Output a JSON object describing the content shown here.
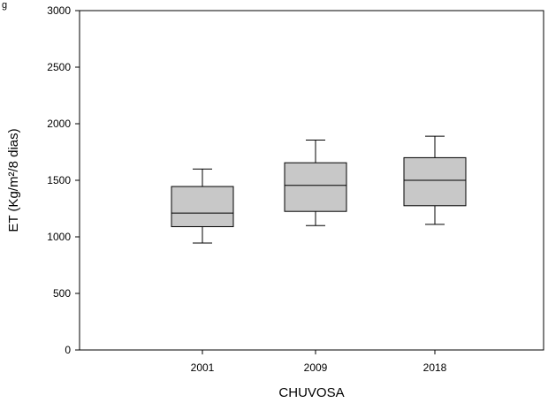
{
  "chart_data": {
    "type": "box",
    "title": "",
    "corner_mark": "g",
    "xlabel": "CHUVOSA",
    "ylabel": "ET (Kg/m²/8 dias)",
    "ylim": [
      0,
      3000
    ],
    "yticks": [
      0,
      500,
      1000,
      1500,
      2000,
      2500,
      3000
    ],
    "categories": [
      "2001",
      "2009",
      "2018"
    ],
    "boxes": [
      {
        "category": "2001",
        "whisker_low": 945,
        "q1": 1090,
        "median": 1210,
        "q3": 1445,
        "whisker_high": 1600
      },
      {
        "category": "2009",
        "whisker_low": 1100,
        "q1": 1225,
        "median": 1455,
        "q3": 1655,
        "whisker_high": 1855
      },
      {
        "category": "2018",
        "whisker_low": 1110,
        "q1": 1275,
        "median": 1500,
        "q3": 1700,
        "whisker_high": 1890
      }
    ],
    "grid": false,
    "legend": "none",
    "colors": {
      "box_fill": "#c8c8c8",
      "stroke": "#000000",
      "background": "#ffffff"
    }
  }
}
